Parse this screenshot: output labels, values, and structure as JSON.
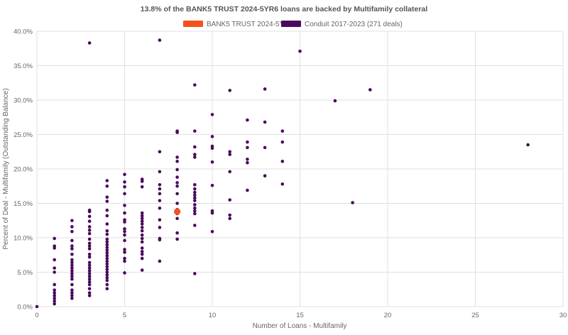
{
  "chart_data": {
    "type": "scatter",
    "title": "13.8% of the BANK5 TRUST 2024-5YR6 loans are backed by Multifamily collateral",
    "xlabel": "Number of Loans - Multifamily",
    "ylabel": "Percent of Deal - Multifamily (Outstanding Balance)",
    "xlim": [
      0,
      30
    ],
    "ylim": [
      0,
      40
    ],
    "x_ticks": [
      0,
      5,
      10,
      15,
      20,
      25,
      30
    ],
    "y_ticks": [
      0,
      5,
      10,
      15,
      20,
      25,
      30,
      35,
      40
    ],
    "y_tick_format": "percent_1dp",
    "grid": true,
    "legend_position": "top-center",
    "series": [
      {
        "name": "BANK5 TRUST 2024-5YR6",
        "color": "#f4511e",
        "points": [
          [
            8,
            13.8
          ]
        ]
      },
      {
        "name": "Conduit 2017-2023 (271 deals)",
        "color": "#4a0a5c",
        "points": [
          [
            0,
            0
          ],
          [
            1,
            0.4
          ],
          [
            1,
            0.8
          ],
          [
            1,
            1.2
          ],
          [
            1,
            1.6
          ],
          [
            1,
            2.0
          ],
          [
            1,
            2.4
          ],
          [
            1,
            3.2
          ],
          [
            1,
            5.0
          ],
          [
            1,
            5.6
          ],
          [
            1,
            6.8
          ],
          [
            1,
            8.5
          ],
          [
            1,
            8.8
          ],
          [
            1,
            9.9
          ],
          [
            2,
            1.2
          ],
          [
            2,
            1.6
          ],
          [
            2,
            2.0
          ],
          [
            2,
            2.4
          ],
          [
            2,
            3.2
          ],
          [
            2,
            4.0
          ],
          [
            2,
            4.4
          ],
          [
            2,
            4.8
          ],
          [
            2,
            5.2
          ],
          [
            2,
            5.6
          ],
          [
            2,
            6.0
          ],
          [
            2,
            6.4
          ],
          [
            2,
            6.8
          ],
          [
            2,
            7.6
          ],
          [
            2,
            8.4
          ],
          [
            2,
            8.8
          ],
          [
            2,
            9.6
          ],
          [
            2,
            10.9
          ],
          [
            2,
            11.6
          ],
          [
            2,
            12.5
          ],
          [
            3,
            1.6
          ],
          [
            3,
            2.0
          ],
          [
            3,
            2.6
          ],
          [
            3,
            3.2
          ],
          [
            3,
            3.6
          ],
          [
            3,
            4.0
          ],
          [
            3,
            4.4
          ],
          [
            3,
            4.8
          ],
          [
            3,
            5.2
          ],
          [
            3,
            5.6
          ],
          [
            3,
            6.0
          ],
          [
            3,
            6.4
          ],
          [
            3,
            7.2
          ],
          [
            3,
            7.6
          ],
          [
            3,
            8.4
          ],
          [
            3,
            8.8
          ],
          [
            3,
            9.2
          ],
          [
            3,
            9.8
          ],
          [
            3,
            10.6
          ],
          [
            3,
            11.1
          ],
          [
            3,
            11.6
          ],
          [
            3,
            12.4
          ],
          [
            3,
            13.1
          ],
          [
            3,
            13.8
          ],
          [
            3,
            14.0
          ],
          [
            3,
            38.3
          ],
          [
            4,
            2.6
          ],
          [
            4,
            3.2
          ],
          [
            4,
            3.8
          ],
          [
            4,
            4.2
          ],
          [
            4,
            4.6
          ],
          [
            4,
            5.0
          ],
          [
            4,
            5.4
          ],
          [
            4,
            5.8
          ],
          [
            4,
            6.2
          ],
          [
            4,
            6.6
          ],
          [
            4,
            7.0
          ],
          [
            4,
            7.4
          ],
          [
            4,
            7.8
          ],
          [
            4,
            8.2
          ],
          [
            4,
            8.6
          ],
          [
            4,
            9.0
          ],
          [
            4,
            9.4
          ],
          [
            4,
            9.8
          ],
          [
            4,
            10.5
          ],
          [
            4,
            11.0
          ],
          [
            4,
            12.0
          ],
          [
            4,
            13.2
          ],
          [
            4,
            14.0
          ],
          [
            4,
            15.3
          ],
          [
            4,
            15.9
          ],
          [
            4,
            17.5
          ],
          [
            4,
            18.3
          ],
          [
            5,
            4.9
          ],
          [
            5,
            6.6
          ],
          [
            5,
            7.0
          ],
          [
            5,
            7.9
          ],
          [
            5,
            8.3
          ],
          [
            5,
            9.6
          ],
          [
            5,
            10.4
          ],
          [
            5,
            10.9
          ],
          [
            5,
            11.3
          ],
          [
            5,
            12.3
          ],
          [
            5,
            12.6
          ],
          [
            5,
            13.6
          ],
          [
            5,
            14.7
          ],
          [
            5,
            16.4
          ],
          [
            5,
            17.4
          ],
          [
            5,
            18.1
          ],
          [
            5,
            19.2
          ],
          [
            6,
            5.3
          ],
          [
            6,
            7.0
          ],
          [
            6,
            7.6
          ],
          [
            6,
            8.0
          ],
          [
            6,
            8.5
          ],
          [
            6,
            9.4
          ],
          [
            6,
            9.9
          ],
          [
            6,
            10.4
          ],
          [
            6,
            11.0
          ],
          [
            6,
            11.5
          ],
          [
            6,
            12.0
          ],
          [
            6,
            12.4
          ],
          [
            6,
            12.8
          ],
          [
            6,
            13.2
          ],
          [
            6,
            13.6
          ],
          [
            6,
            17.4
          ],
          [
            6,
            18.2
          ],
          [
            6,
            18.5
          ],
          [
            7,
            6.6
          ],
          [
            7,
            9.7
          ],
          [
            7,
            9.9
          ],
          [
            7,
            11.5
          ],
          [
            7,
            12.6
          ],
          [
            7,
            14.3
          ],
          [
            7,
            15.4
          ],
          [
            7,
            16.4
          ],
          [
            7,
            17.1
          ],
          [
            7,
            17.7
          ],
          [
            7,
            19.6
          ],
          [
            7,
            22.5
          ],
          [
            7,
            38.7
          ],
          [
            8,
            9.8
          ],
          [
            8,
            10.7
          ],
          [
            8,
            12.8
          ],
          [
            8,
            13.5
          ],
          [
            8,
            14.1
          ],
          [
            8,
            15.0
          ],
          [
            8,
            16.4
          ],
          [
            8,
            17.5
          ],
          [
            8,
            18.0
          ],
          [
            8,
            18.8
          ],
          [
            8,
            19.9
          ],
          [
            8,
            21.1
          ],
          [
            8,
            21.7
          ],
          [
            8,
            25.3
          ],
          [
            8,
            25.5
          ],
          [
            9,
            4.8
          ],
          [
            9,
            11.8
          ],
          [
            9,
            13.5
          ],
          [
            9,
            13.9
          ],
          [
            9,
            14.3
          ],
          [
            9,
            14.8
          ],
          [
            9,
            15.4
          ],
          [
            9,
            15.8
          ],
          [
            9,
            16.2
          ],
          [
            9,
            16.6
          ],
          [
            9,
            17.1
          ],
          [
            9,
            17.7
          ],
          [
            9,
            21.7
          ],
          [
            9,
            22.1
          ],
          [
            9,
            23.2
          ],
          [
            9,
            25.5
          ],
          [
            9,
            32.2
          ],
          [
            10,
            10.9
          ],
          [
            10,
            13.6
          ],
          [
            10,
            13.9
          ],
          [
            10,
            17.6
          ],
          [
            10,
            21.0
          ],
          [
            10,
            23.0
          ],
          [
            10,
            23.3
          ],
          [
            10,
            24.7
          ],
          [
            10,
            27.9
          ],
          [
            11,
            12.8
          ],
          [
            11,
            13.3
          ],
          [
            11,
            15.5
          ],
          [
            11,
            19.6
          ],
          [
            11,
            22.1
          ],
          [
            11,
            22.5
          ],
          [
            11,
            31.4
          ],
          [
            12,
            16.9
          ],
          [
            12,
            20.9
          ],
          [
            12,
            21.4
          ],
          [
            12,
            23.1
          ],
          [
            12,
            23.9
          ],
          [
            12,
            27.1
          ],
          [
            13,
            19.0
          ],
          [
            13,
            23.1
          ],
          [
            13,
            26.8
          ],
          [
            13,
            31.6
          ],
          [
            14,
            17.8
          ],
          [
            14,
            21.1
          ],
          [
            14,
            23.9
          ],
          [
            14,
            25.5
          ],
          [
            15,
            37.1
          ],
          [
            17,
            29.9
          ],
          [
            18,
            15.1
          ],
          [
            19,
            31.5
          ],
          [
            28,
            23.5
          ]
        ]
      }
    ]
  }
}
